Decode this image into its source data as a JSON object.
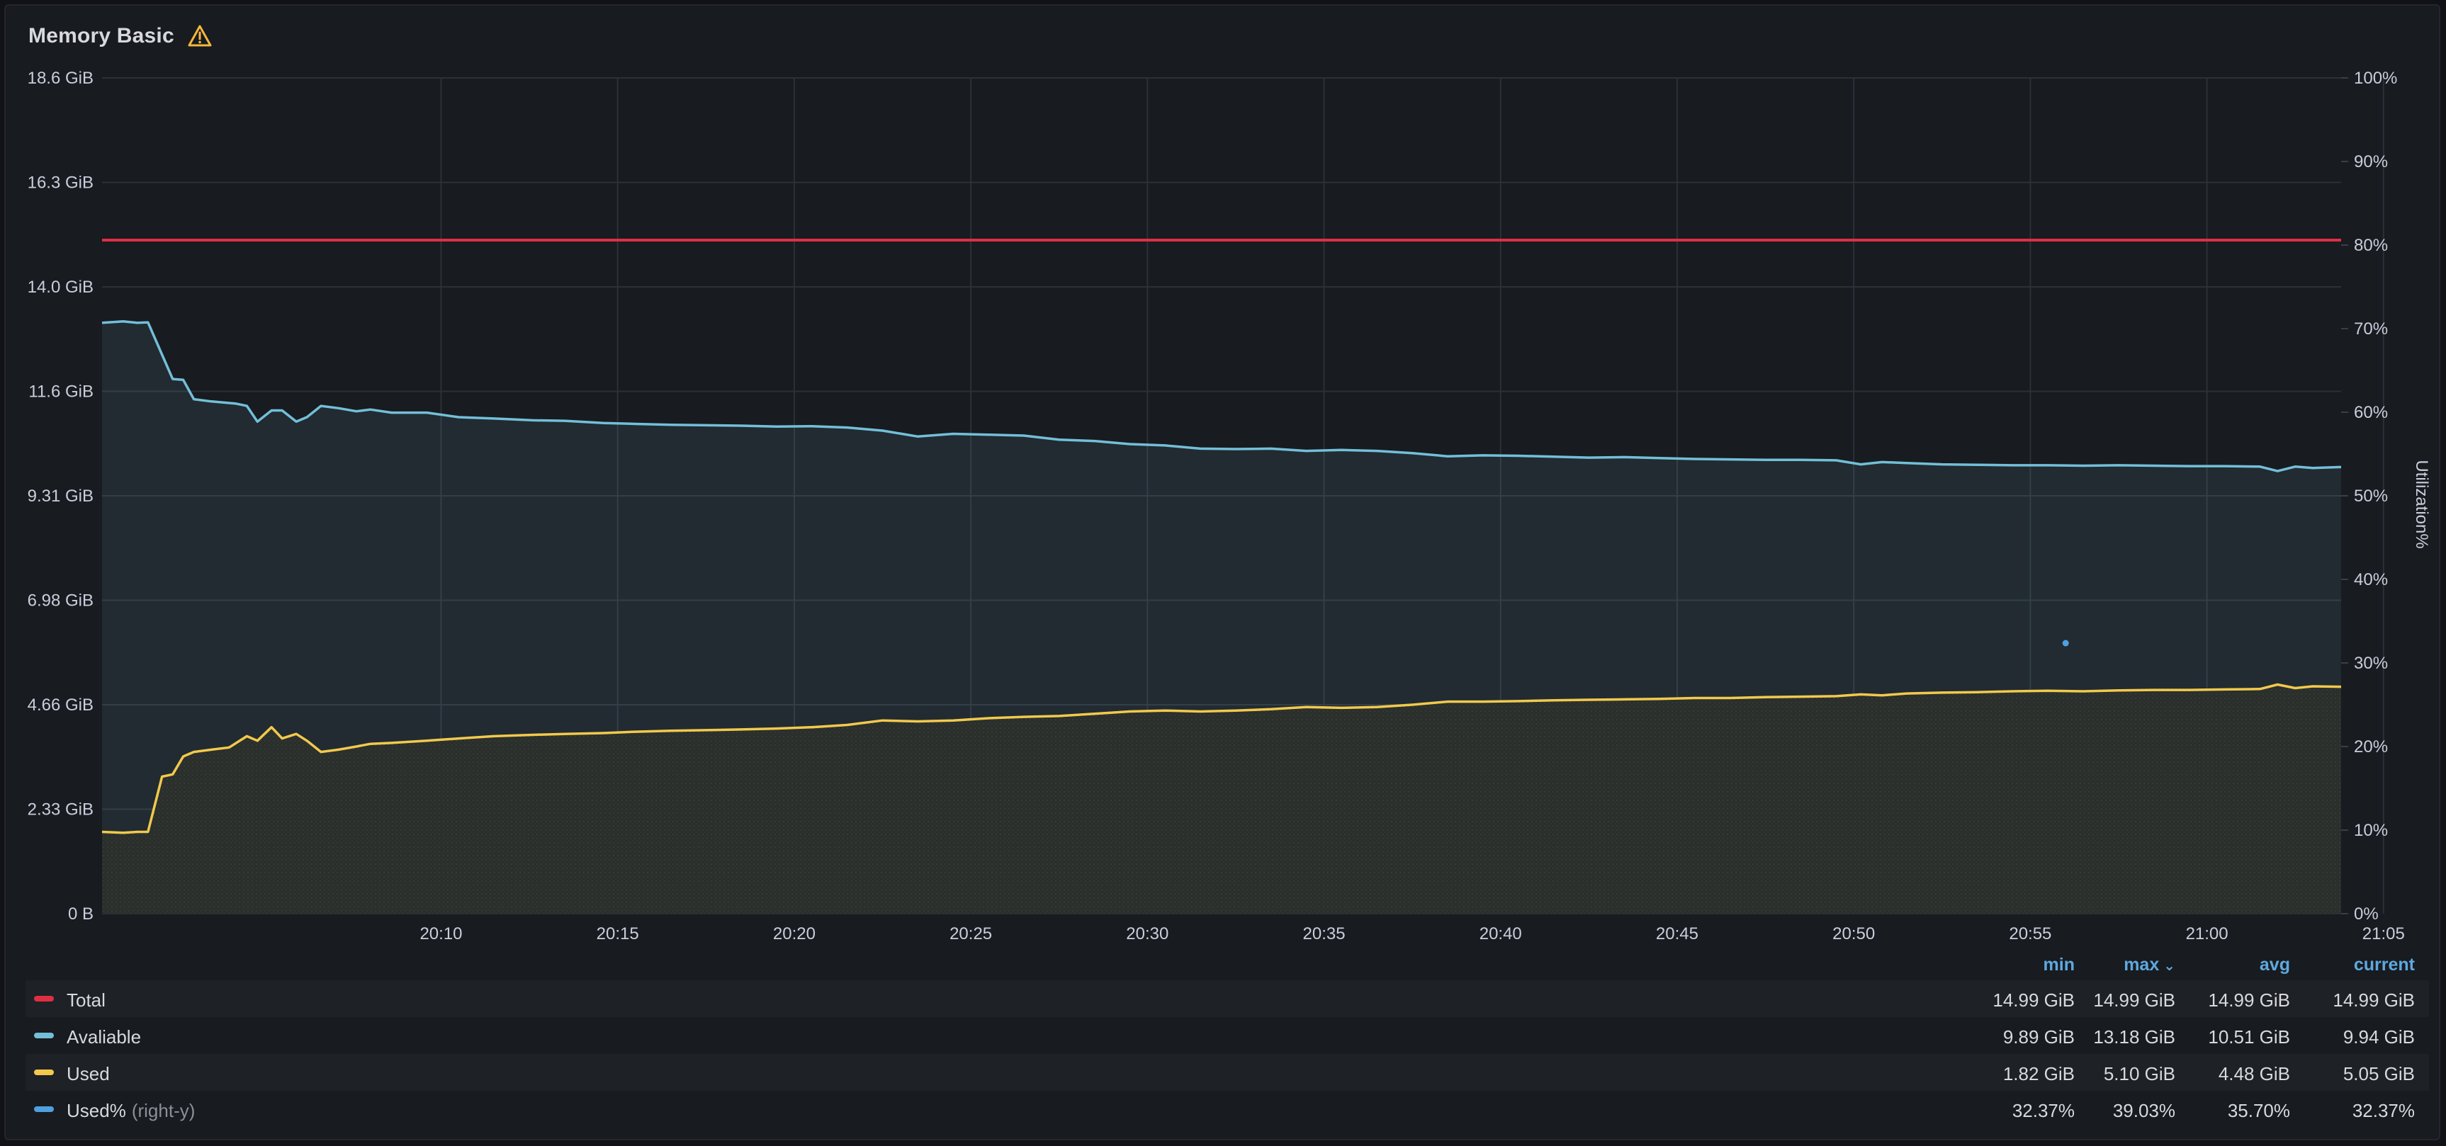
{
  "panel": {
    "title": "Memory Basic",
    "warning_icon": "warning-triangle-icon",
    "warning_color": "#f5b73d"
  },
  "chart_data": {
    "type": "line",
    "x_tick_labels": [
      "20:10",
      "20:15",
      "20:20",
      "20:25",
      "20:30",
      "20:35",
      "20:40",
      "20:45",
      "20:50",
      "20:55",
      "21:00",
      "21:05"
    ],
    "x_range_minutes": [
      -4.6,
      58.8
    ],
    "left_axis": {
      "tick_labels": [
        "0 B",
        "2.33 GiB",
        "4.66 GiB",
        "6.98 GiB",
        "9.31 GiB",
        "11.6 GiB",
        "14.0 GiB",
        "16.3 GiB",
        "18.6 GiB"
      ],
      "ylim": [
        0,
        18.6
      ],
      "unit": "GiB"
    },
    "right_axis": {
      "label": "Utilization%",
      "tick_labels": [
        "0%",
        "10%",
        "20%",
        "30%",
        "40%",
        "50%",
        "60%",
        "70%",
        "80%",
        "90%",
        "100%"
      ],
      "ylim": [
        0,
        100
      ]
    },
    "grid": true,
    "series": [
      {
        "name": "Total",
        "color": "#e02f44",
        "axis": "left",
        "points": [
          [
            -4.6,
            14.99
          ],
          [
            58.8,
            14.99
          ]
        ]
      },
      {
        "name": "Avaliable",
        "color": "#73bfd9",
        "axis": "left",
        "fill": true,
        "points": [
          [
            -4.6,
            13.15
          ],
          [
            -4.0,
            13.18
          ],
          [
            -3.6,
            13.15
          ],
          [
            -3.3,
            13.16
          ],
          [
            -2.6,
            11.9
          ],
          [
            -2.3,
            11.88
          ],
          [
            -2.0,
            11.45
          ],
          [
            -1.5,
            11.4
          ],
          [
            -0.8,
            11.35
          ],
          [
            -0.5,
            11.3
          ],
          [
            -0.2,
            10.95
          ],
          [
            0.2,
            11.2
          ],
          [
            0.5,
            11.2
          ],
          [
            0.9,
            10.95
          ],
          [
            1.2,
            11.05
          ],
          [
            1.6,
            11.3
          ],
          [
            2.1,
            11.25
          ],
          [
            2.6,
            11.18
          ],
          [
            3.0,
            11.22
          ],
          [
            3.6,
            11.15
          ],
          [
            4.6,
            11.15
          ],
          [
            5.5,
            11.05
          ],
          [
            6.5,
            11.02
          ],
          [
            7.6,
            10.98
          ],
          [
            8.5,
            10.97
          ],
          [
            9.6,
            10.92
          ],
          [
            10.5,
            10.9
          ],
          [
            11.5,
            10.88
          ],
          [
            13.5,
            10.86
          ],
          [
            14.5,
            10.84
          ],
          [
            15.5,
            10.85
          ],
          [
            16.5,
            10.82
          ],
          [
            17.5,
            10.75
          ],
          [
            18.5,
            10.62
          ],
          [
            19.5,
            10.68
          ],
          [
            20.5,
            10.66
          ],
          [
            21.5,
            10.64
          ],
          [
            22.5,
            10.55
          ],
          [
            23.5,
            10.52
          ],
          [
            24.5,
            10.45
          ],
          [
            25.5,
            10.42
          ],
          [
            26.5,
            10.35
          ],
          [
            27.5,
            10.34
          ],
          [
            28.5,
            10.35
          ],
          [
            29.5,
            10.3
          ],
          [
            30.5,
            10.32
          ],
          [
            31.5,
            10.3
          ],
          [
            32.5,
            10.25
          ],
          [
            33.5,
            10.18
          ],
          [
            34.5,
            10.2
          ],
          [
            35.5,
            10.19
          ],
          [
            36.5,
            10.17
          ],
          [
            37.5,
            10.15
          ],
          [
            38.5,
            10.16
          ],
          [
            39.5,
            10.14
          ],
          [
            40.5,
            10.12
          ],
          [
            41.5,
            10.11
          ],
          [
            42.5,
            10.1
          ],
          [
            43.5,
            10.1
          ],
          [
            44.5,
            10.09
          ],
          [
            45.2,
            10.0
          ],
          [
            45.8,
            10.05
          ],
          [
            46.5,
            10.03
          ],
          [
            47.5,
            10.0
          ],
          [
            48.5,
            9.99
          ],
          [
            49.5,
            9.98
          ],
          [
            50.5,
            9.98
          ],
          [
            51.5,
            9.97
          ],
          [
            52.5,
            9.98
          ],
          [
            53.5,
            9.97
          ],
          [
            54.5,
            9.96
          ],
          [
            55.5,
            9.96
          ],
          [
            56.5,
            9.95
          ],
          [
            57.0,
            9.85
          ],
          [
            57.5,
            9.95
          ],
          [
            58.0,
            9.92
          ],
          [
            58.8,
            9.94
          ]
        ]
      },
      {
        "name": "Used",
        "color": "#f2c94c",
        "axis": "left",
        "fill": true,
        "points": [
          [
            -4.6,
            1.82
          ],
          [
            -4.0,
            1.8
          ],
          [
            -3.6,
            1.82
          ],
          [
            -3.3,
            1.82
          ],
          [
            -2.9,
            3.05
          ],
          [
            -2.6,
            3.1
          ],
          [
            -2.3,
            3.5
          ],
          [
            -2.0,
            3.6
          ],
          [
            -1.5,
            3.65
          ],
          [
            -1.0,
            3.7
          ],
          [
            -0.5,
            3.95
          ],
          [
            -0.2,
            3.85
          ],
          [
            0.2,
            4.15
          ],
          [
            0.5,
            3.9
          ],
          [
            0.9,
            4.0
          ],
          [
            1.2,
            3.85
          ],
          [
            1.6,
            3.6
          ],
          [
            2.1,
            3.65
          ],
          [
            2.6,
            3.72
          ],
          [
            3.0,
            3.78
          ],
          [
            3.6,
            3.8
          ],
          [
            4.6,
            3.85
          ],
          [
            5.5,
            3.9
          ],
          [
            6.5,
            3.95
          ],
          [
            7.6,
            3.98
          ],
          [
            8.5,
            4.0
          ],
          [
            9.6,
            4.02
          ],
          [
            10.5,
            4.05
          ],
          [
            11.5,
            4.07
          ],
          [
            13.5,
            4.1
          ],
          [
            14.5,
            4.12
          ],
          [
            15.5,
            4.15
          ],
          [
            16.5,
            4.2
          ],
          [
            17.5,
            4.3
          ],
          [
            18.5,
            4.28
          ],
          [
            19.5,
            4.3
          ],
          [
            20.5,
            4.35
          ],
          [
            21.5,
            4.38
          ],
          [
            22.5,
            4.4
          ],
          [
            23.5,
            4.45
          ],
          [
            24.5,
            4.5
          ],
          [
            25.5,
            4.52
          ],
          [
            26.5,
            4.5
          ],
          [
            27.5,
            4.52
          ],
          [
            28.5,
            4.55
          ],
          [
            29.5,
            4.6
          ],
          [
            30.5,
            4.58
          ],
          [
            31.5,
            4.6
          ],
          [
            32.5,
            4.65
          ],
          [
            33.5,
            4.72
          ],
          [
            34.5,
            4.72
          ],
          [
            35.5,
            4.73
          ],
          [
            36.5,
            4.75
          ],
          [
            37.5,
            4.76
          ],
          [
            38.5,
            4.77
          ],
          [
            39.5,
            4.78
          ],
          [
            40.5,
            4.8
          ],
          [
            41.5,
            4.8
          ],
          [
            42.5,
            4.82
          ],
          [
            43.5,
            4.83
          ],
          [
            44.5,
            4.84
          ],
          [
            45.2,
            4.88
          ],
          [
            45.8,
            4.86
          ],
          [
            46.5,
            4.9
          ],
          [
            47.5,
            4.92
          ],
          [
            48.5,
            4.93
          ],
          [
            49.5,
            4.95
          ],
          [
            50.5,
            4.96
          ],
          [
            51.5,
            4.95
          ],
          [
            52.5,
            4.97
          ],
          [
            53.5,
            4.98
          ],
          [
            54.5,
            4.98
          ],
          [
            55.5,
            4.99
          ],
          [
            56.5,
            5.0
          ],
          [
            57.0,
            5.1
          ],
          [
            57.5,
            5.02
          ],
          [
            58.0,
            5.06
          ],
          [
            58.8,
            5.05
          ]
        ]
      },
      {
        "name": "Used%",
        "color": "#4fa0e0",
        "axis": "right",
        "points": [
          [
            51.0,
            32.37
          ]
        ]
      }
    ]
  },
  "legend": {
    "columns": {
      "min": "min",
      "max": "max",
      "avg": "avg",
      "current": "current"
    },
    "rows": [
      {
        "name": "Total",
        "suffix": "",
        "color": "#e02f44",
        "min": "14.99 GiB",
        "max": "14.99 GiB",
        "avg": "14.99 GiB",
        "current": "14.99 GiB"
      },
      {
        "name": "Avaliable",
        "suffix": "",
        "color": "#73bfd9",
        "min": "9.89 GiB",
        "max": "13.18 GiB",
        "avg": "10.51 GiB",
        "current": "9.94 GiB"
      },
      {
        "name": "Used",
        "suffix": "",
        "color": "#f2c94c",
        "min": "1.82 GiB",
        "max": "5.10 GiB",
        "avg": "4.48 GiB",
        "current": "5.05 GiB"
      },
      {
        "name": "Used%",
        "suffix": "(right-y)",
        "color": "#4fa0e0",
        "min": "32.37%",
        "max": "39.03%",
        "avg": "35.70%",
        "current": "32.37%"
      }
    ]
  }
}
